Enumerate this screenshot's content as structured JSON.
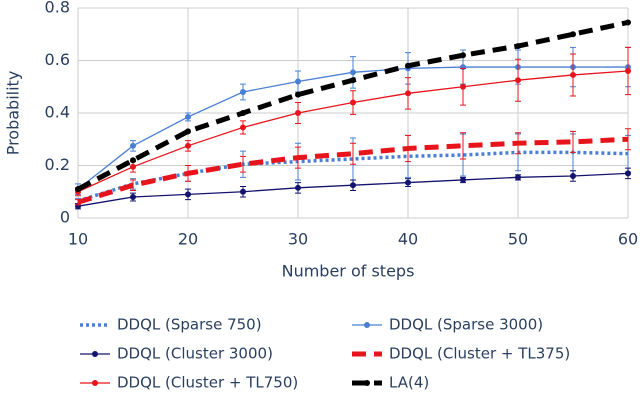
{
  "chart_data": {
    "type": "line",
    "xlabel": "Number of steps",
    "ylabel": "Probability",
    "x": [
      10,
      15,
      20,
      25,
      30,
      35,
      40,
      45,
      50,
      55,
      60
    ],
    "xlim": [
      10,
      60
    ],
    "xticks": [
      10,
      20,
      30,
      40,
      50,
      60
    ],
    "ylim": [
      0,
      0.8
    ],
    "yticks": [
      0,
      0.2,
      0.4,
      0.6,
      0.8
    ],
    "grid": true,
    "series": [
      {
        "name": "DDQL (Sparse 750)",
        "color": "#4a7fd4",
        "style": "dot",
        "markers": false,
        "values": [
          0.065,
          0.13,
          0.17,
          0.205,
          0.215,
          0.225,
          0.235,
          0.24,
          0.25,
          0.25,
          0.245
        ],
        "errors": [
          0.01,
          0.02,
          0.03,
          0.05,
          0.07,
          0.08,
          0.08,
          0.08,
          0.07,
          0.07,
          0.07
        ]
      },
      {
        "name": "DDQL (Sparse 3000)",
        "color": "#4a7fd4",
        "style": "solid",
        "markers": true,
        "values": [
          0.11,
          0.275,
          0.385,
          0.48,
          0.52,
          0.555,
          0.57,
          0.575,
          0.575,
          0.575,
          0.575
        ],
        "errors": [
          0.02,
          0.02,
          0.015,
          0.03,
          0.04,
          0.06,
          0.06,
          0.065,
          0.065,
          0.075,
          0.075
        ]
      },
      {
        "name": "DDQL (Cluster 3000)",
        "color": "#14146e",
        "style": "solid",
        "markers": true,
        "values": [
          0.045,
          0.08,
          0.09,
          0.1,
          0.115,
          0.125,
          0.135,
          0.145,
          0.155,
          0.16,
          0.17
        ],
        "errors": [
          0.01,
          0.015,
          0.02,
          0.02,
          0.02,
          0.02,
          0.015,
          0.01,
          0.01,
          0.02,
          0.02
        ]
      },
      {
        "name": "DDQL (Cluster + TL375)",
        "color": "#e8141c",
        "style": "dash",
        "markers": false,
        "values": [
          0.06,
          0.125,
          0.17,
          0.205,
          0.23,
          0.245,
          0.265,
          0.275,
          0.285,
          0.29,
          0.3
        ],
        "errors": [
          0.01,
          0.02,
          0.03,
          0.03,
          0.04,
          0.04,
          0.05,
          0.05,
          0.04,
          0.04,
          0.04
        ]
      },
      {
        "name": "DDQL (Cluster + TL750)",
        "color": "#e8141c",
        "style": "solid",
        "markers": true,
        "values": [
          0.1,
          0.195,
          0.275,
          0.345,
          0.4,
          0.44,
          0.475,
          0.5,
          0.525,
          0.545,
          0.56
        ],
        "errors": [
          0.015,
          0.02,
          0.02,
          0.025,
          0.04,
          0.045,
          0.06,
          0.07,
          0.08,
          0.08,
          0.09
        ]
      },
      {
        "name": "LA(4)",
        "color": "#000000",
        "style": "dash",
        "markers": true,
        "values": [
          0.11,
          0.22,
          0.33,
          0.4,
          0.47,
          0.525,
          0.58,
          0.62,
          0.655,
          0.7,
          0.745
        ]
      }
    ]
  }
}
